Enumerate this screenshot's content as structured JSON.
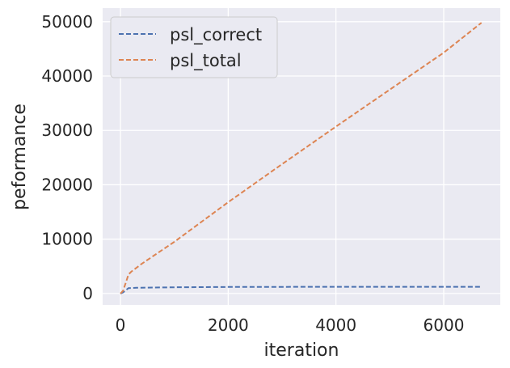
{
  "chart_data": {
    "type": "line",
    "title": "",
    "xlabel": "iteration",
    "ylabel": "peformance",
    "xlim": [
      -330,
      7050
    ],
    "ylim": [
      -2100,
      52500
    ],
    "xticks": [
      0,
      2000,
      4000,
      6000
    ],
    "xtick_labels": [
      "0",
      "2000",
      "4000",
      "6000"
    ],
    "yticks": [
      0,
      10000,
      20000,
      30000,
      40000,
      50000
    ],
    "ytick_labels": [
      "0",
      "10000",
      "20000",
      "30000",
      "40000",
      "50000"
    ],
    "grid": true,
    "legend": "upper-left",
    "line_style": "dashed",
    "series": [
      {
        "name": "psl_correct",
        "color": "#4c72b0",
        "x": [
          0,
          50,
          150,
          300,
          1000,
          2000,
          3000,
          4000,
          5000,
          6000,
          6700
        ],
        "y": [
          0,
          200,
          1000,
          1050,
          1150,
          1200,
          1220,
          1230,
          1230,
          1230,
          1230
        ]
      },
      {
        "name": "psl_total",
        "color": "#dd8452",
        "x": [
          0,
          50,
          150,
          200,
          400,
          1000,
          2000,
          3000,
          4000,
          5000,
          6000,
          6700
        ],
        "y": [
          0,
          500,
          3500,
          4000,
          5500,
          9500,
          16800,
          23800,
          30700,
          37500,
          44300,
          49800
        ]
      }
    ]
  }
}
